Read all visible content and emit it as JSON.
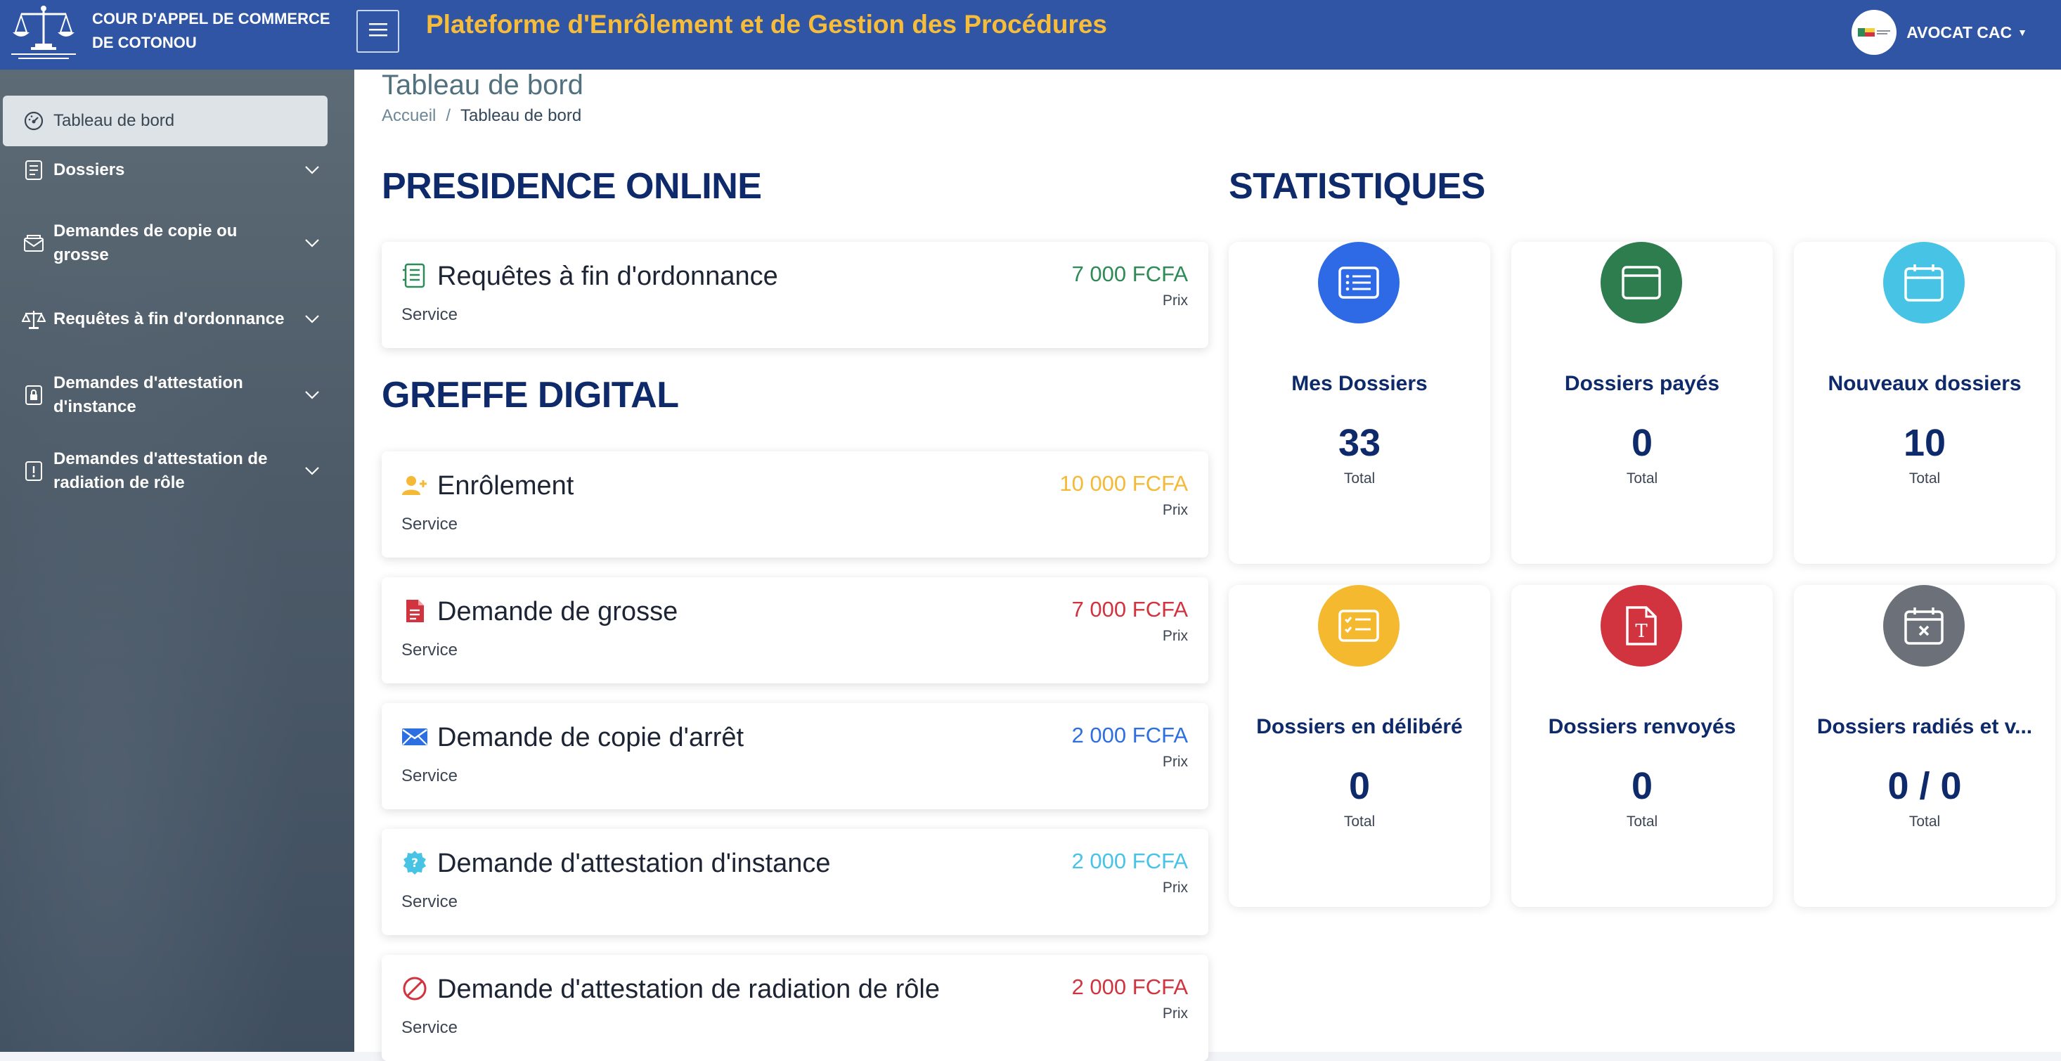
{
  "header": {
    "court_name": "COUR D'APPEL DE COMMERCE DE COTONOU",
    "app_title": "Plateforme d'Enrôlement et de Gestion des Procédures",
    "user_label": "AVOCAT CAC",
    "menu_icon": "hamburger-icon"
  },
  "sidebar": {
    "items": [
      {
        "label": "Tableau de bord",
        "icon": "dashboard-icon"
      },
      {
        "label": "Dossiers",
        "icon": "document-icon"
      },
      {
        "label": "Demandes de copie ou grosse",
        "icon": "envelope-icon"
      },
      {
        "label": "Requêtes à fin d'ordonnance",
        "icon": "scale-icon"
      },
      {
        "label": "Demandes d'attestation d'instance",
        "icon": "lock-file-icon"
      },
      {
        "label": "Demandes d'attestation de radiation de rôle",
        "icon": "alert-file-icon"
      }
    ]
  },
  "page": {
    "title": "Tableau de bord",
    "breadcrumb_home": "Accueil",
    "breadcrumb_current": "Tableau de bord"
  },
  "presidence": {
    "heading": "PRESIDENCE ONLINE",
    "services": [
      {
        "name": "Requêtes à fin d'ordonnance",
        "type": "Service",
        "price": "7 000 FCFA",
        "price_label": "Prix",
        "color": "#2e8b57"
      }
    ]
  },
  "greffe": {
    "heading": "GREFFE DIGITAL",
    "services": [
      {
        "name": "Enrôlement",
        "type": "Service",
        "price": "10 000 FCFA",
        "price_label": "Prix",
        "color": "#f4b935"
      },
      {
        "name": "Demande de grosse",
        "type": "Service",
        "price": "7 000 FCFA",
        "price_label": "Prix",
        "color": "#d1343f"
      },
      {
        "name": "Demande de copie d'arrêt",
        "type": "Service",
        "price": "2 000 FCFA",
        "price_label": "Prix",
        "color": "#2d6fe0"
      },
      {
        "name": "Demande d'attestation d'instance",
        "type": "Service",
        "price": "2 000 FCFA",
        "price_label": "Prix",
        "color": "#47c3e6"
      },
      {
        "name": "Demande d'attestation de radiation de rôle",
        "type": "Service",
        "price": "2 000 FCFA",
        "price_label": "Prix",
        "color": "#d1343f"
      }
    ]
  },
  "stats": {
    "heading": "STATISTIQUES",
    "cards": [
      {
        "title": "Mes Dossiers",
        "value": "33",
        "total_label": "Total",
        "color": "#2f6ae6",
        "icon": "list-icon"
      },
      {
        "title": "Dossiers payés",
        "value": "0",
        "total_label": "Total",
        "color": "#2e7d4f",
        "icon": "wallet-icon"
      },
      {
        "title": "Nouveaux dossiers",
        "value": "10",
        "total_label": "Total",
        "color": "#47c3e6",
        "icon": "calendar-icon"
      },
      {
        "title": "Dossiers en délibéré",
        "value": "0",
        "total_label": "Total",
        "color": "#f4b92f",
        "icon": "checklist-icon"
      },
      {
        "title": "Dossiers renvoyés",
        "value": "0",
        "total_label": "Total",
        "color": "#d1343f",
        "icon": "text-file-icon"
      },
      {
        "title": "Dossiers radiés et v...",
        "value": "0 / 0",
        "total_label": "Total",
        "color": "#6b7079",
        "icon": "calendar-x-icon"
      }
    ]
  }
}
